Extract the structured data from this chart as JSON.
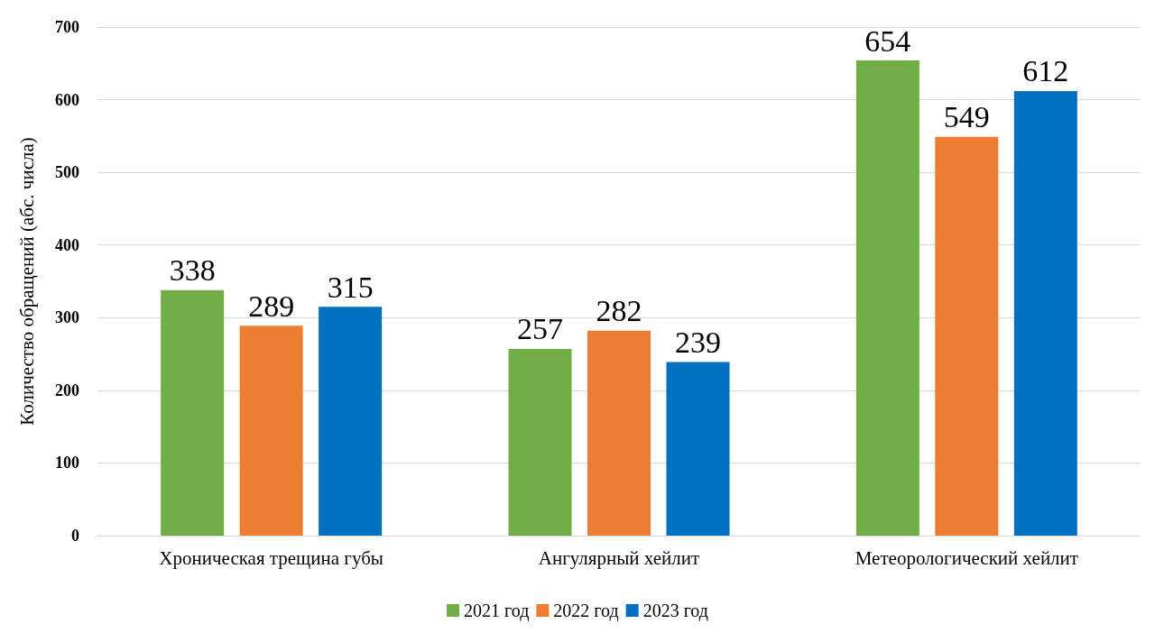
{
  "chart_data": {
    "type": "bar",
    "ylabel": "Количество обращений (абс. числа)",
    "categories": [
      "Хроническая трещина губы",
      "Ангулярный хейлит",
      "Метеорологический хейлит"
    ],
    "series": [
      {
        "name": "2021 год",
        "color": "#70ad47",
        "values": [
          338,
          257,
          654
        ]
      },
      {
        "name": "2022 год",
        "color": "#ed7d31",
        "values": [
          289,
          282,
          549
        ]
      },
      {
        "name": "2023 год",
        "color": "#0070c0",
        "values": [
          315,
          239,
          612
        ]
      }
    ],
    "ylim": [
      0,
      700
    ],
    "yticks": [
      0,
      100,
      200,
      300,
      400,
      500,
      600,
      700
    ],
    "grid": "y",
    "legend": "bottom",
    "data_labels": true
  }
}
